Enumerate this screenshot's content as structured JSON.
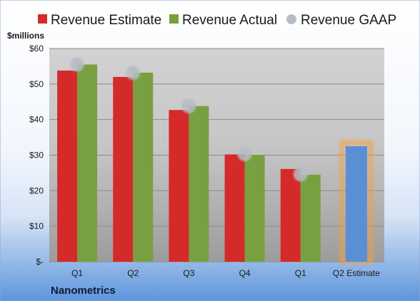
{
  "chart_data": {
    "type": "bar",
    "unit_label": "$millions",
    "company": "Nanometrics",
    "categories": [
      "Q1",
      "Q2",
      "Q3",
      "Q4",
      "Q1",
      "Q2 Estimate"
    ],
    "ylim": [
      0,
      60
    ],
    "yticks": [
      {
        "value": 0,
        "label": "$-"
      },
      {
        "value": 10,
        "label": "$10"
      },
      {
        "value": 20,
        "label": "$20"
      },
      {
        "value": 30,
        "label": "$30"
      },
      {
        "value": 40,
        "label": "$40"
      },
      {
        "value": 50,
        "label": "$50"
      },
      {
        "value": 60,
        "label": "$60"
      }
    ],
    "grid": true,
    "legend_position": "top",
    "series": [
      {
        "name": "Revenue Estimate",
        "kind": "bar",
        "color": "#d42a2a",
        "values": [
          53.8,
          52.0,
          42.7,
          30.2,
          26.1,
          null
        ]
      },
      {
        "name": "Revenue Actual",
        "kind": "bar",
        "color": "#79a040",
        "values": [
          55.5,
          53.2,
          43.8,
          30.1,
          24.5,
          null
        ]
      },
      {
        "name": "Revenue GAAP",
        "kind": "marker",
        "color": "#b8bcc6",
        "values": [
          55.5,
          53.2,
          43.8,
          30.3,
          24.6,
          null
        ]
      }
    ],
    "forecast": {
      "category_index": 5,
      "value": 32.5,
      "color": "#5b8fd4",
      "glow": "#f0a040"
    }
  }
}
